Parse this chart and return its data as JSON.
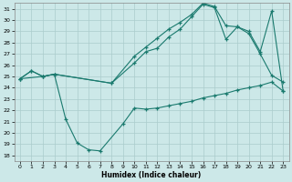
{
  "xlabel": "Humidex (Indice chaleur)",
  "xlim": [
    -0.5,
    23.5
  ],
  "ylim": [
    17.5,
    31.5
  ],
  "xticks": [
    0,
    1,
    2,
    3,
    4,
    5,
    6,
    7,
    8,
    9,
    10,
    11,
    12,
    13,
    14,
    15,
    16,
    17,
    18,
    19,
    20,
    21,
    22,
    23
  ],
  "yticks": [
    18,
    19,
    20,
    21,
    22,
    23,
    24,
    25,
    26,
    27,
    28,
    29,
    30,
    31
  ],
  "bg_color": "#cce8e8",
  "grid_color": "#aacccc",
  "line_color": "#1a7a6e",
  "s1_x": [
    0,
    1,
    2,
    3,
    8,
    10,
    11,
    12,
    13,
    14,
    15,
    16,
    17,
    18,
    19,
    20,
    21,
    22,
    23
  ],
  "s1_y": [
    24.8,
    25.5,
    25.0,
    25.2,
    24.4,
    26.2,
    27.2,
    27.5,
    28.5,
    29.2,
    30.3,
    31.4,
    31.1,
    28.3,
    29.4,
    29.0,
    27.2,
    30.8,
    23.7
  ],
  "s2_x": [
    0,
    2,
    3,
    4,
    5,
    6,
    7,
    9,
    10,
    11,
    12,
    13,
    14,
    15,
    16,
    17,
    18,
    19,
    20,
    21,
    22,
    23
  ],
  "s2_y": [
    24.8,
    25.0,
    25.2,
    21.2,
    19.1,
    18.5,
    18.4,
    20.8,
    22.2,
    22.1,
    22.2,
    22.4,
    22.6,
    22.8,
    23.1,
    23.3,
    23.5,
    23.8,
    24.0,
    24.2,
    24.5,
    23.7
  ],
  "s3_x": [
    0,
    1,
    2,
    3,
    8,
    10,
    11,
    12,
    13,
    14,
    15,
    16,
    17,
    18,
    19,
    20,
    21,
    22,
    23
  ],
  "s3_y": [
    24.8,
    25.5,
    25.0,
    25.2,
    24.4,
    26.8,
    27.6,
    28.4,
    29.2,
    29.8,
    30.5,
    31.5,
    31.2,
    29.5,
    29.4,
    28.8,
    27.0,
    25.1,
    24.5
  ]
}
